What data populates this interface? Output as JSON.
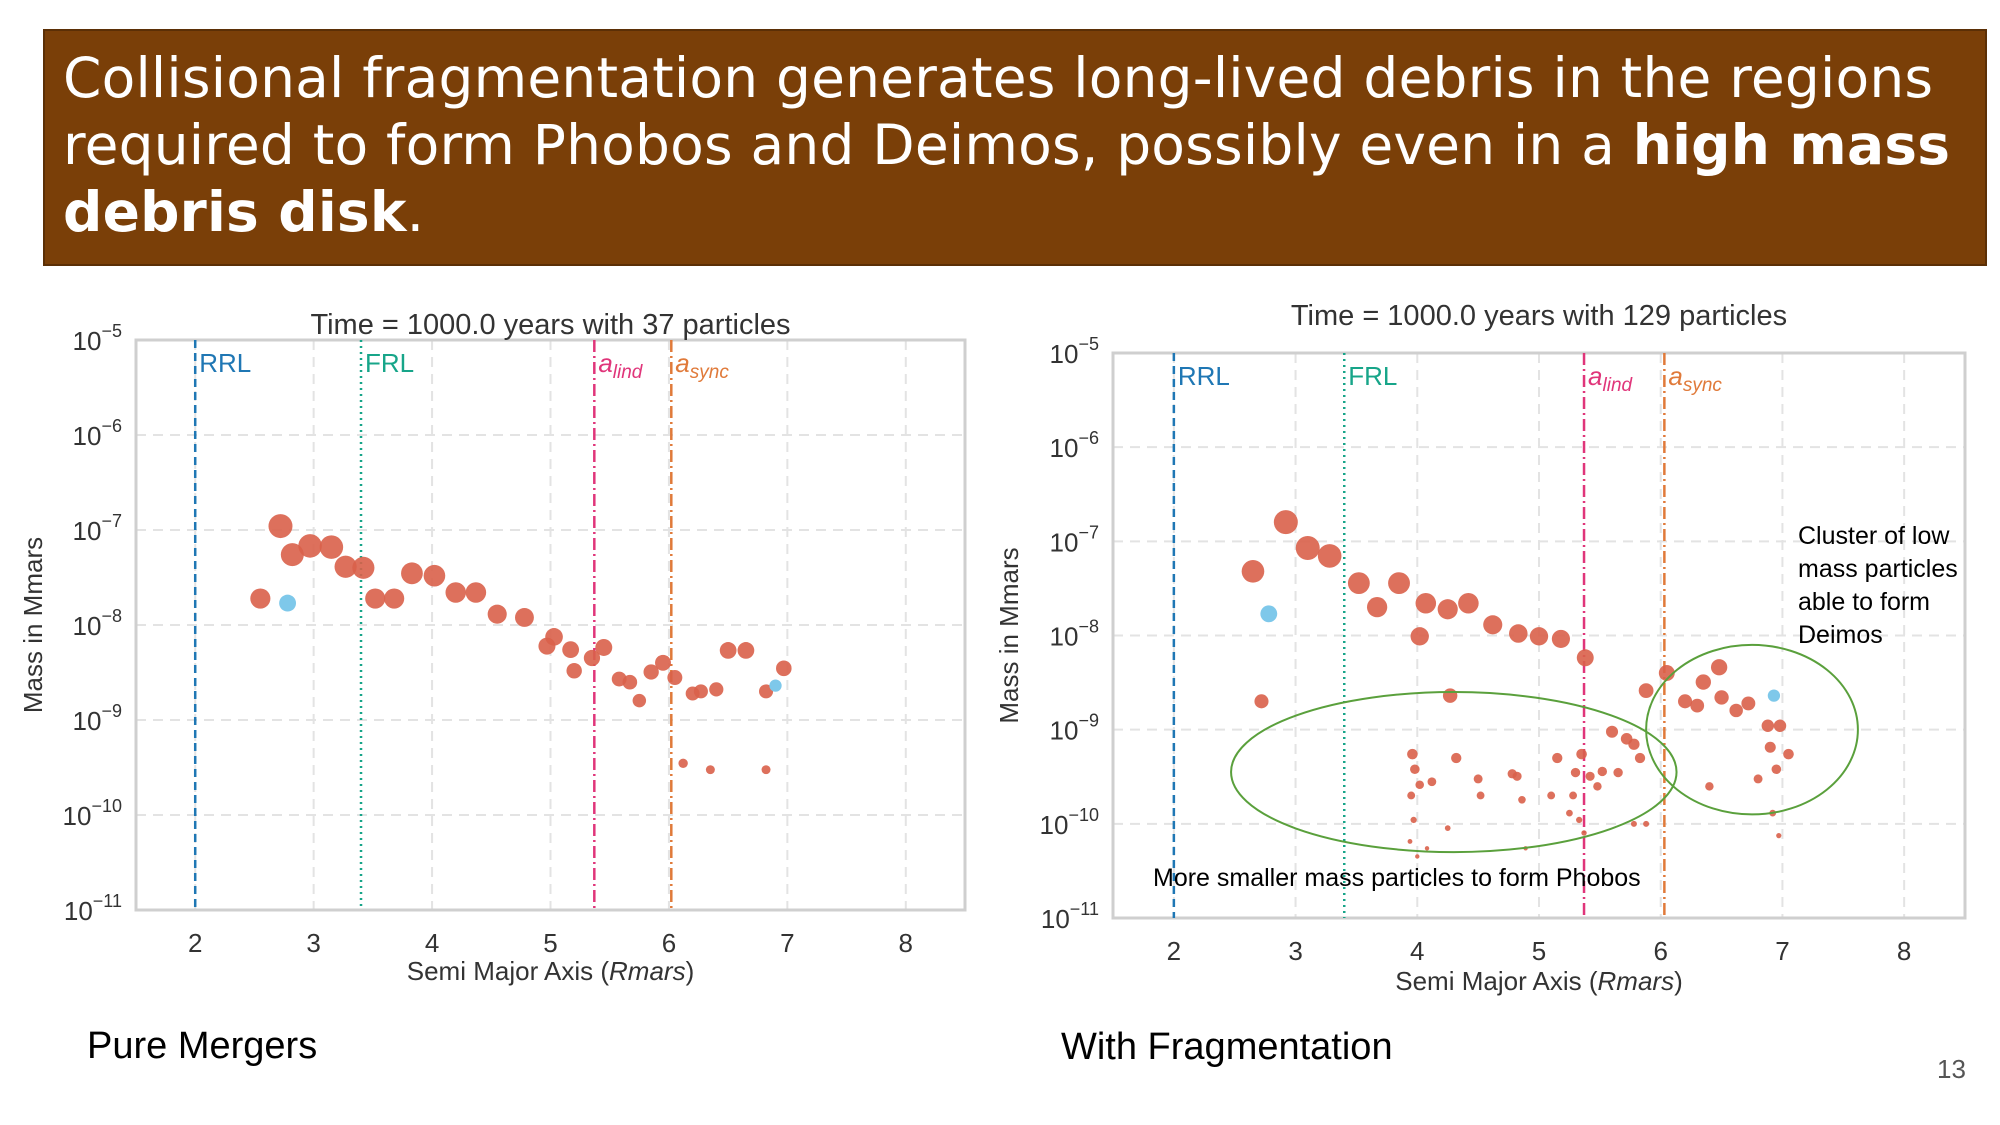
{
  "slide": {
    "title_part1": "Collisional fragmentation generates long-lived debris in the regions required to form Phobos and Deimos, possibly even in a ",
    "title_bold1": "high mass debris disk",
    "title_end": ".",
    "left_caption": "Pure Mergers",
    "right_caption": "With Fragmentation",
    "page_number": "13"
  },
  "colors": {
    "banner": "#7a3f08",
    "particle": "#d9604a",
    "special_particle": "#7ec8ea",
    "rrl": "#1f77b4",
    "frl": "#17a589",
    "alind": "#e0357a",
    "async": "#e07a3a",
    "annotation_ellipse": "#5aa03c"
  },
  "chart_data": [
    {
      "type": "scatter",
      "title": "Time = 1000.0 years with 37 particles",
      "xlabel_text": "Semi Major Axis (",
      "xlabel_italic": "Rmars",
      "xlabel_close": ")",
      "ylabel": "Mass in Mmars",
      "xlim": [
        1.5,
        8.5
      ],
      "ylim_log10": [
        -11,
        -5
      ],
      "yscale": "log",
      "x_ticks": [
        "2",
        "3",
        "4",
        "5",
        "6",
        "7",
        "8"
      ],
      "y_tick_exponents": [
        "−5",
        "−6",
        "−7",
        "−8",
        "−9",
        "−10",
        "−11"
      ],
      "grid": true,
      "vlines": [
        {
          "x": 2.0,
          "label": "RRL",
          "sub": "",
          "style": "dashed",
          "color_key": "rrl"
        },
        {
          "x": 3.4,
          "label": "FRL",
          "sub": "",
          "style": "dotted",
          "color_key": "frl"
        },
        {
          "x": 5.37,
          "label": "a",
          "sub": "lind",
          "style": "dashdot",
          "color_key": "alind"
        },
        {
          "x": 6.02,
          "label": "a",
          "sub": "sync",
          "style": "dashdot",
          "color_key": "async"
        }
      ],
      "points": [
        {
          "x": 2.72,
          "y": 1.1e-07
        },
        {
          "x": 2.82,
          "y": 5.5e-08
        },
        {
          "x": 2.97,
          "y": 6.8e-08
        },
        {
          "x": 3.15,
          "y": 6.6e-08
        },
        {
          "x": 3.27,
          "y": 4.1e-08
        },
        {
          "x": 3.42,
          "y": 4e-08
        },
        {
          "x": 2.55,
          "y": 1.9e-08
        },
        {
          "x": 3.52,
          "y": 1.9e-08
        },
        {
          "x": 3.68,
          "y": 1.9e-08
        },
        {
          "x": 3.83,
          "y": 3.5e-08
        },
        {
          "x": 4.02,
          "y": 3.3e-08
        },
        {
          "x": 4.2,
          "y": 2.2e-08
        },
        {
          "x": 4.37,
          "y": 2.2e-08
        },
        {
          "x": 4.55,
          "y": 1.3e-08
        },
        {
          "x": 4.78,
          "y": 1.2e-08
        },
        {
          "x": 4.97,
          "y": 6e-09
        },
        {
          "x": 5.03,
          "y": 7.5e-09
        },
        {
          "x": 5.17,
          "y": 5.5e-09
        },
        {
          "x": 5.2,
          "y": 3.3e-09
        },
        {
          "x": 5.35,
          "y": 4.5e-09
        },
        {
          "x": 5.45,
          "y": 5.8e-09
        },
        {
          "x": 5.58,
          "y": 2.7e-09
        },
        {
          "x": 5.67,
          "y": 2.5e-09
        },
        {
          "x": 5.75,
          "y": 1.6e-09
        },
        {
          "x": 5.85,
          "y": 3.2e-09
        },
        {
          "x": 5.95,
          "y": 4e-09
        },
        {
          "x": 6.05,
          "y": 2.8e-09
        },
        {
          "x": 6.2,
          "y": 1.9e-09
        },
        {
          "x": 6.27,
          "y": 2e-09
        },
        {
          "x": 6.4,
          "y": 2.1e-09
        },
        {
          "x": 6.5,
          "y": 5.4e-09
        },
        {
          "x": 6.65,
          "y": 5.4e-09
        },
        {
          "x": 6.82,
          "y": 2e-09
        },
        {
          "x": 6.97,
          "y": 3.5e-09
        },
        {
          "x": 6.12,
          "y": 3.5e-10
        },
        {
          "x": 6.35,
          "y": 3e-10
        },
        {
          "x": 6.82,
          "y": 3e-10
        }
      ],
      "special_points": [
        {
          "x": 2.78,
          "y": 1.7e-08
        },
        {
          "x": 6.9,
          "y": 2.3e-09
        }
      ]
    },
    {
      "type": "scatter",
      "title": "Time = 1000.0 years with 129 particles",
      "xlabel_text": "Semi Major Axis (",
      "xlabel_italic": "Rmars",
      "xlabel_close": ")",
      "ylabel": "Mass in Mmars",
      "xlim": [
        1.5,
        8.5
      ],
      "ylim_log10": [
        -11,
        -5
      ],
      "yscale": "log",
      "x_ticks": [
        "2",
        "3",
        "4",
        "5",
        "6",
        "7",
        "8"
      ],
      "y_tick_exponents": [
        "−5",
        "−6",
        "−7",
        "−8",
        "−9",
        "−10",
        "−11"
      ],
      "grid": true,
      "vlines": [
        {
          "x": 2.0,
          "label": "RRL",
          "sub": "",
          "style": "dashed",
          "color_key": "rrl"
        },
        {
          "x": 3.4,
          "label": "FRL",
          "sub": "",
          "style": "dotted",
          "color_key": "frl"
        },
        {
          "x": 5.37,
          "label": "a",
          "sub": "lind",
          "style": "dashdot",
          "color_key": "alind"
        },
        {
          "x": 6.03,
          "label": "a",
          "sub": "sync",
          "style": "dashdot",
          "color_key": "async"
        }
      ],
      "annotations": [
        {
          "text": "Cluster of low\nmass particles\nable to form\nDeimos",
          "center_x": 6.75,
          "center_log10": -9.0,
          "rx_data": 0.87,
          "ry_log10": 0.9
        },
        {
          "text": "More smaller mass particles to form Phobos",
          "center_x": 4.3,
          "center_log10": -9.45,
          "rx_data": 1.83,
          "ry_log10": 0.85
        }
      ],
      "points": [
        {
          "x": 2.92,
          "y": 1.6e-07
        },
        {
          "x": 3.1,
          "y": 8.5e-08
        },
        {
          "x": 3.28,
          "y": 7e-08
        },
        {
          "x": 2.65,
          "y": 4.8e-08
        },
        {
          "x": 3.52,
          "y": 3.6e-08
        },
        {
          "x": 3.67,
          "y": 2e-08
        },
        {
          "x": 3.85,
          "y": 3.6e-08
        },
        {
          "x": 4.07,
          "y": 2.2e-08
        },
        {
          "x": 4.25,
          "y": 1.9e-08
        },
        {
          "x": 4.42,
          "y": 2.2e-08
        },
        {
          "x": 4.62,
          "y": 1.3e-08
        },
        {
          "x": 4.83,
          "y": 1.05e-08
        },
        {
          "x": 5.0,
          "y": 9.8e-09
        },
        {
          "x": 5.18,
          "y": 9.2e-09
        },
        {
          "x": 4.02,
          "y": 9.8e-09
        },
        {
          "x": 5.38,
          "y": 5.8e-09
        },
        {
          "x": 6.05,
          "y": 4e-09
        },
        {
          "x": 5.88,
          "y": 2.6e-09
        },
        {
          "x": 2.72,
          "y": 2e-09
        },
        {
          "x": 6.2,
          "y": 2e-09
        },
        {
          "x": 6.3,
          "y": 1.8e-09
        },
        {
          "x": 6.35,
          "y": 3.2e-09
        },
        {
          "x": 6.48,
          "y": 4.6e-09
        },
        {
          "x": 6.5,
          "y": 2.2e-09
        },
        {
          "x": 6.62,
          "y": 1.6e-09
        },
        {
          "x": 6.72,
          "y": 1.9e-09
        },
        {
          "x": 6.88,
          "y": 1.1e-09
        },
        {
          "x": 6.98,
          "y": 1.1e-09
        },
        {
          "x": 5.72,
          "y": 8e-10
        },
        {
          "x": 5.83,
          "y": 5e-10
        },
        {
          "x": 5.65,
          "y": 3.5e-10
        },
        {
          "x": 5.52,
          "y": 3.6e-10
        },
        {
          "x": 5.6,
          "y": 9.5e-10
        },
        {
          "x": 5.78,
          "y": 7e-10
        },
        {
          "x": 6.9,
          "y": 6.5e-10
        },
        {
          "x": 6.95,
          "y": 3.8e-10
        },
        {
          "x": 7.05,
          "y": 5.5e-10
        },
        {
          "x": 6.92,
          "y": 1.3e-10
        },
        {
          "x": 6.97,
          "y": 7.5e-11
        },
        {
          "x": 6.8,
          "y": 3e-10
        },
        {
          "x": 6.4,
          "y": 2.5e-10
        },
        {
          "x": 5.3,
          "y": 3.5e-10
        },
        {
          "x": 5.28,
          "y": 2e-10
        },
        {
          "x": 5.33,
          "y": 1.1e-10
        },
        {
          "x": 5.35,
          "y": 5.5e-10
        },
        {
          "x": 5.42,
          "y": 3.2e-10
        },
        {
          "x": 5.48,
          "y": 2.5e-10
        },
        {
          "x": 5.25,
          "y": 1.3e-10
        },
        {
          "x": 5.15,
          "y": 5e-10
        },
        {
          "x": 5.1,
          "y": 2e-10
        },
        {
          "x": 5.37,
          "y": 8e-11
        },
        {
          "x": 5.78,
          "y": 1e-10
        },
        {
          "x": 5.88,
          "y": 1e-10
        },
        {
          "x": 4.86,
          "y": 1.8e-10
        },
        {
          "x": 4.82,
          "y": 3.2e-10
        },
        {
          "x": 4.78,
          "y": 3.4e-10
        },
        {
          "x": 4.89,
          "y": 5.5e-11
        },
        {
          "x": 4.52,
          "y": 2e-10
        },
        {
          "x": 4.32,
          "y": 5e-10
        },
        {
          "x": 4.27,
          "y": 2.3e-09
        },
        {
          "x": 4.25,
          "y": 9e-11
        },
        {
          "x": 3.96,
          "y": 5.5e-10
        },
        {
          "x": 3.98,
          "y": 3.8e-10
        },
        {
          "x": 4.02,
          "y": 2.6e-10
        },
        {
          "x": 3.95,
          "y": 2e-10
        },
        {
          "x": 3.97,
          "y": 1.1e-10
        },
        {
          "x": 3.94,
          "y": 6.5e-11
        },
        {
          "x": 4.0,
          "y": 4.5e-11
        },
        {
          "x": 4.08,
          "y": 5.5e-11
        },
        {
          "x": 4.12,
          "y": 2.8e-10
        },
        {
          "x": 4.5,
          "y": 3e-10
        }
      ],
      "special_points": [
        {
          "x": 2.78,
          "y": 1.7e-08
        },
        {
          "x": 6.93,
          "y": 2.3e-09
        }
      ]
    }
  ]
}
